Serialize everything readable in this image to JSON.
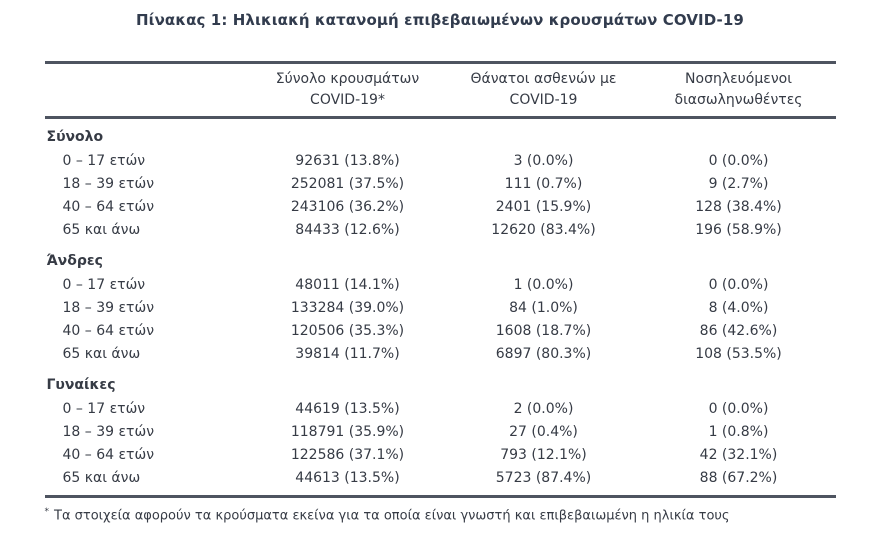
{
  "title": "Πίνακας 1: Ηλικιακή κατανομή επιβεβαιωμένων κρουσμάτων COVID-19",
  "table": {
    "columns": [
      {
        "line1": "Σύνολο κρουσμάτων",
        "line2": "COVID-19*"
      },
      {
        "line1": "Θάνατοι ασθενών με",
        "line2": "COVID-19"
      },
      {
        "line1": "Νοσηλευόμενοι",
        "line2": "διασωληνωθέντες"
      }
    ],
    "sections": [
      {
        "label": "Σύνολο",
        "rows": [
          {
            "label": "0 – 17 ετών",
            "values": [
              "92631 (13.8%)",
              "3 (0.0%)",
              "0 (0.0%)"
            ]
          },
          {
            "label": "18 – 39 ετών",
            "values": [
              "252081 (37.5%)",
              "111 (0.7%)",
              "9 (2.7%)"
            ]
          },
          {
            "label": "40 – 64 ετών",
            "values": [
              "243106 (36.2%)",
              "2401 (15.9%)",
              "128 (38.4%)"
            ]
          },
          {
            "label": "65 και άνω",
            "values": [
              "84433 (12.6%)",
              "12620 (83.4%)",
              "196 (58.9%)"
            ]
          }
        ]
      },
      {
        "label": "Άνδρες",
        "rows": [
          {
            "label": "0 – 17 ετών",
            "values": [
              "48011 (14.1%)",
              "1 (0.0%)",
              "0 (0.0%)"
            ]
          },
          {
            "label": "18 – 39 ετών",
            "values": [
              "133284 (39.0%)",
              "84 (1.0%)",
              "8 (4.0%)"
            ]
          },
          {
            "label": "40 – 64 ετών",
            "values": [
              "120506 (35.3%)",
              "1608 (18.7%)",
              "86 (42.6%)"
            ]
          },
          {
            "label": "65 και άνω",
            "values": [
              "39814 (11.7%)",
              "6897 (80.3%)",
              "108 (53.5%)"
            ]
          }
        ]
      },
      {
        "label": "Γυναίκες",
        "rows": [
          {
            "label": "0 – 17 ετών",
            "values": [
              "44619 (13.5%)",
              "2 (0.0%)",
              "0 (0.0%)"
            ]
          },
          {
            "label": "18 – 39 ετών",
            "values": [
              "118791 (35.9%)",
              "27 (0.4%)",
              "1 (0.8%)"
            ]
          },
          {
            "label": "40 – 64 ετών",
            "values": [
              "122586 (37.1%)",
              "793 (12.1%)",
              "42 (32.1%)"
            ]
          },
          {
            "label": "65 και άνω",
            "values": [
              "44613 (13.5%)",
              "5723 (87.4%)",
              "88 (67.2%)"
            ]
          }
        ]
      }
    ]
  },
  "footnote": {
    "marker": "*",
    "text": "Τα στοιχεία αφορούν τα κρούσματα εκείνα για τα οποία είναι γνωστή και επιβεβαιωμένη η ηλικία τους"
  },
  "colors": {
    "text": "#363b45",
    "title": "#323c4e",
    "rule": "#4e5460",
    "background": "#ffffff"
  }
}
